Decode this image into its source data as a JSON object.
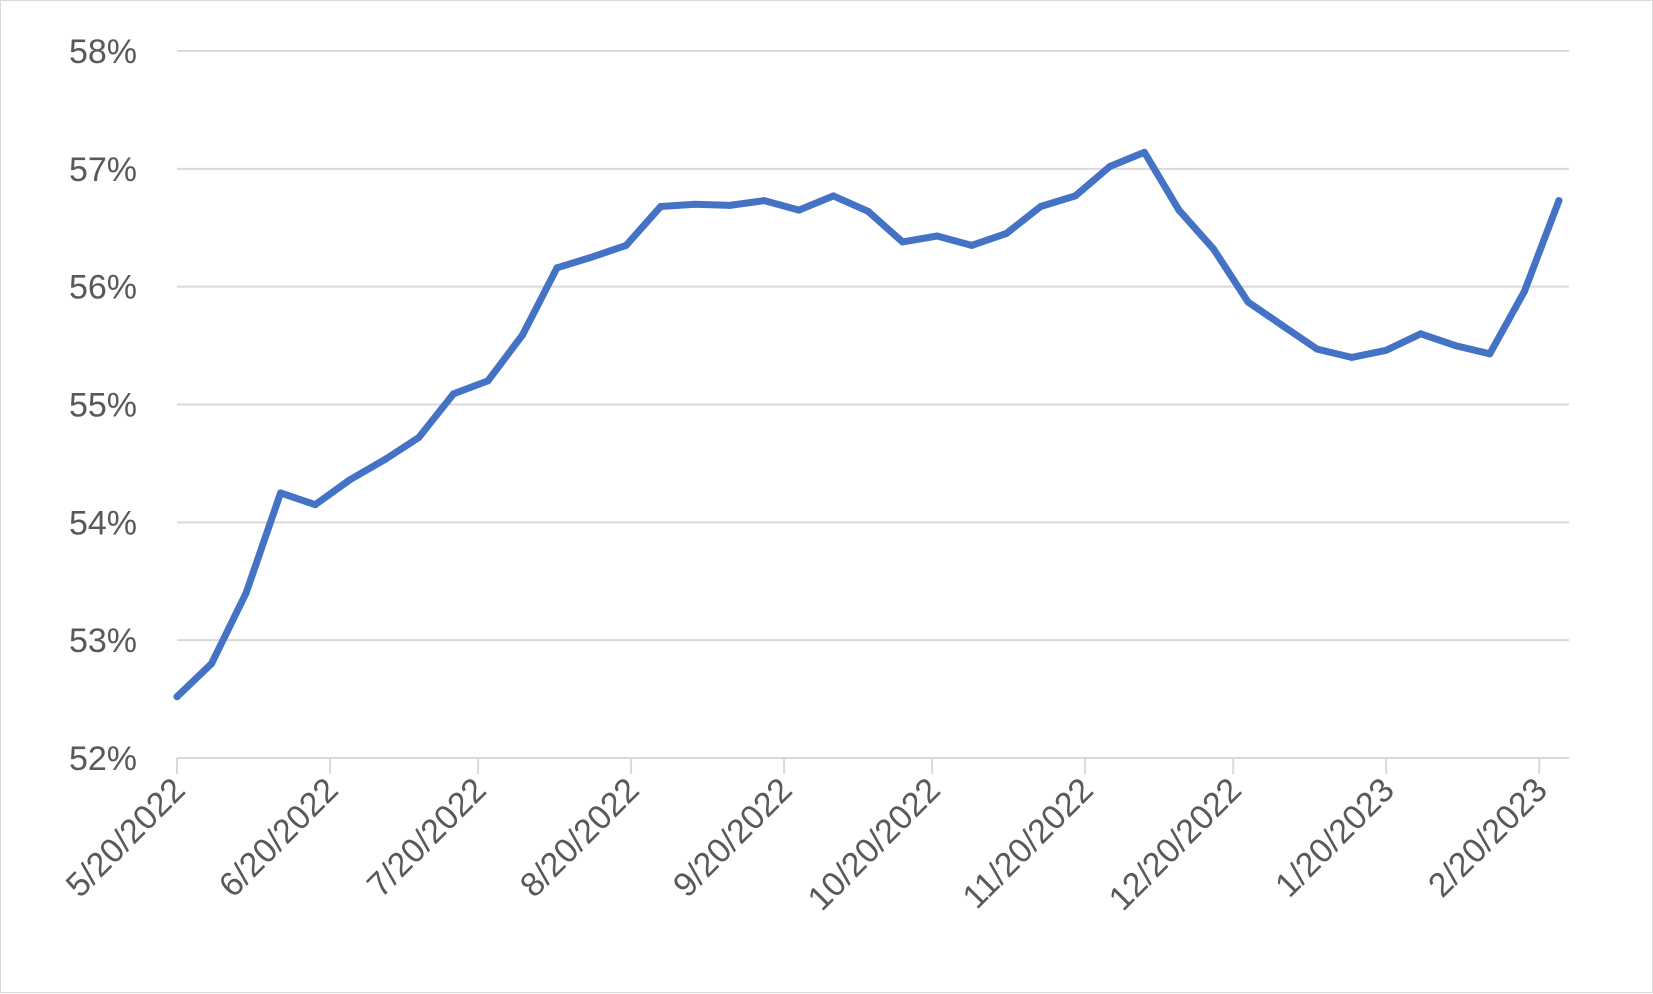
{
  "chart_data": {
    "type": "line",
    "title": "",
    "xlabel": "",
    "ylabel": "",
    "ylim": [
      0.52,
      0.58
    ],
    "y_ticks": [
      0.52,
      0.53,
      0.54,
      0.55,
      0.56,
      0.57,
      0.58
    ],
    "y_tick_labels": [
      "52%",
      "53%",
      "54%",
      "55%",
      "56%",
      "57%",
      "58%"
    ],
    "x_tick_dates": [
      "2022-05-20",
      "2022-06-20",
      "2022-07-20",
      "2022-08-20",
      "2022-09-20",
      "2022-10-20",
      "2022-11-20",
      "2022-12-20",
      "2023-01-20",
      "2023-02-20"
    ],
    "x_tick_labels": [
      "5/20/2022",
      "6/20/2022",
      "7/20/2022",
      "8/20/2022",
      "9/20/2022",
      "10/20/2022",
      "11/20/2022",
      "12/20/2022",
      "1/20/2023",
      "2/20/2023"
    ],
    "grid": true,
    "legend": "none",
    "color": "#4472c4",
    "series": [
      {
        "x": [
          "2022-05-20",
          "2022-05-27",
          "2022-06-03",
          "2022-06-10",
          "2022-06-17",
          "2022-06-24",
          "2022-07-01",
          "2022-07-08",
          "2022-07-15",
          "2022-07-22",
          "2022-07-29",
          "2022-08-05",
          "2022-08-12",
          "2022-08-19",
          "2022-08-26",
          "2022-09-02",
          "2022-09-09",
          "2022-09-16",
          "2022-09-23",
          "2022-09-30",
          "2022-10-07",
          "2022-10-14",
          "2022-10-21",
          "2022-10-28",
          "2022-11-04",
          "2022-11-11",
          "2022-11-18",
          "2022-11-25",
          "2022-12-02",
          "2022-12-09",
          "2022-12-16",
          "2022-12-23",
          "2022-12-30",
          "2023-01-06",
          "2023-01-13",
          "2023-01-20",
          "2023-01-27",
          "2023-02-03",
          "2023-02-10",
          "2023-02-17",
          "2023-02-24"
        ],
        "values": [
          0.5252,
          0.528,
          0.534,
          0.5425,
          0.5415,
          0.5436,
          0.5453,
          0.5472,
          0.5509,
          0.552,
          0.5559,
          0.5616,
          0.5625,
          0.5635,
          0.5668,
          0.567,
          0.5669,
          0.5673,
          0.5665,
          0.5677,
          0.5664,
          0.5638,
          0.5643,
          0.5635,
          0.5645,
          0.5668,
          0.5677,
          0.5702,
          0.5714,
          0.5665,
          0.5632,
          0.5587,
          0.5567,
          0.5547,
          0.554,
          0.5546,
          0.556,
          0.555,
          0.5543,
          0.5596,
          0.5673
        ]
      }
    ]
  }
}
